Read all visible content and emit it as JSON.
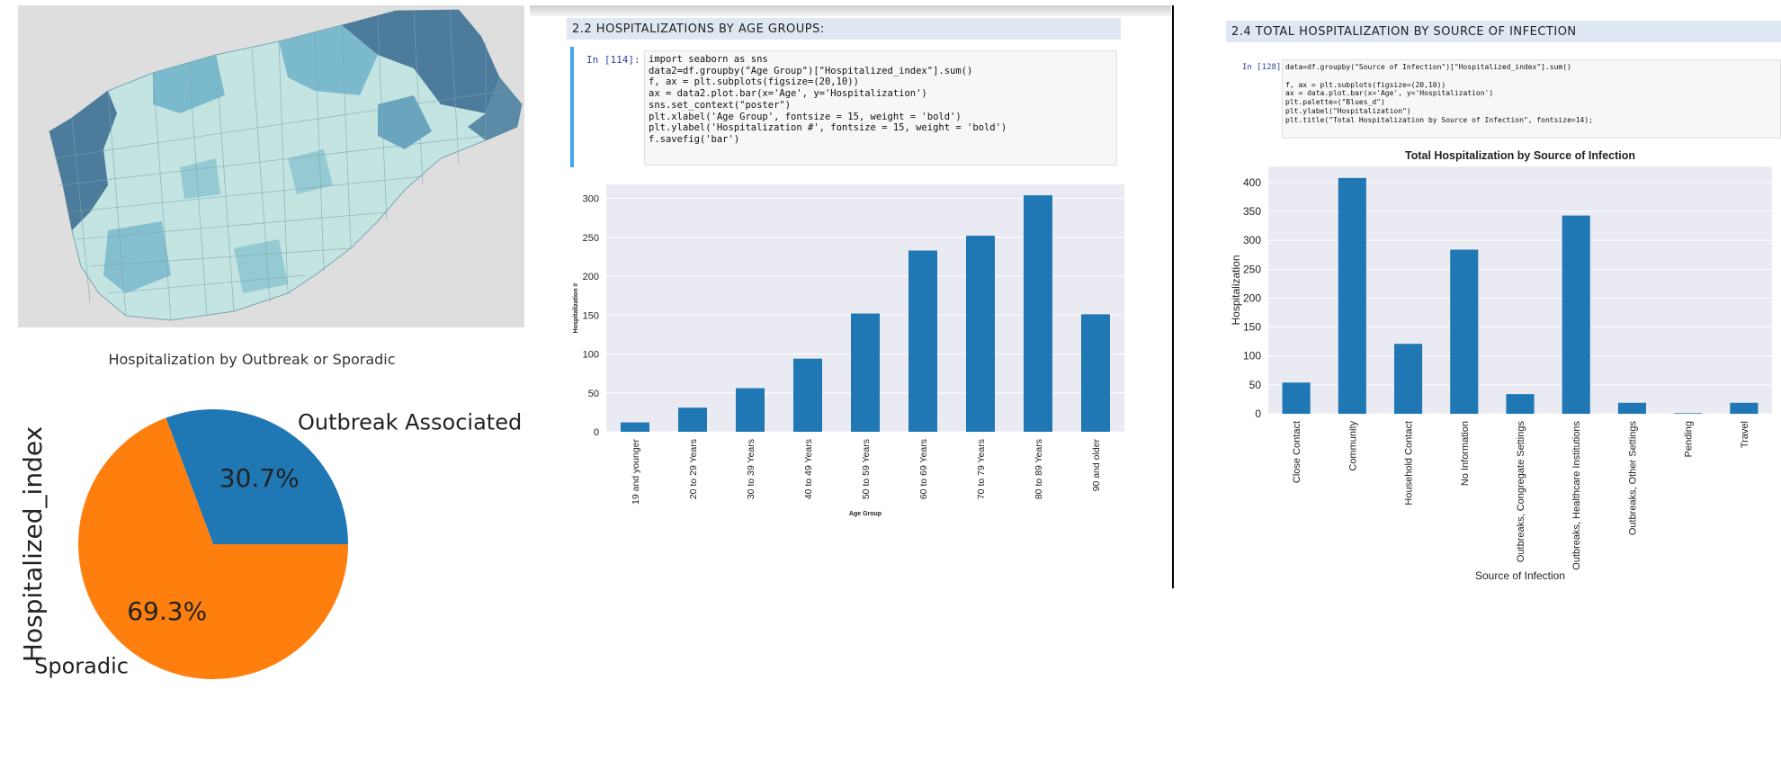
{
  "map": {
    "fill_light": "#c4e4e2",
    "fill_mid": "#6fb3c8",
    "fill_dark": "#3f6f93",
    "background": "#dedede"
  },
  "pie_chart": {
    "title": "Hospitalization by Outbreak or Sporadic",
    "ylabel": "Hospitalized_index"
  },
  "age_section": {
    "header": "2.2 HOSPITALIZATIONS BY AGE GROUPS:",
    "prompt": "In [114]:",
    "code": [
      "import seaborn as sns",
      "data2=df.groupby(\"Age Group\")[\"Hospitalized_index\"].sum()",
      "f, ax = plt.subplots(figsize=(20,10))",
      "ax = data2.plot.bar(x='Age', y='Hospitalization')",
      "sns.set_context(\"poster\")",
      "plt.xlabel('Age Group', fontsize = 15, weight = 'bold')",
      "plt.ylabel('Hospitalization #', fontsize = 15, weight = 'bold')",
      "f.savefig('bar')"
    ]
  },
  "source_section": {
    "header": "2.4 TOTAL HOSPITALIZATION BY SOURCE OF INFECTION",
    "prompt": "In [128]:",
    "code": [
      "data=df.groupby(\"Source of Infection\")[\"Hospitalized_index\"].sum()",
      "",
      "f, ax = plt.subplots(figsize=(20,10))",
      "ax = data.plot.bar(x='Age', y='Hospitalization')",
      "plt.palette=(\"Blues_d\")",
      "plt.ylabel(\"Hospitalization\")",
      "plt.title(\"Total Hospitalization by Source of Infection\", fontsize=14);"
    ]
  },
  "chart_data": [
    {
      "id": "pie",
      "type": "pie",
      "title": "Hospitalization by Outbreak or Sporadic",
      "ylabel": "Hospitalized_index",
      "categories": [
        "Outbreak Associated",
        "Sporadic"
      ],
      "values": [
        30.7,
        69.3
      ],
      "value_labels": [
        "30.7%",
        "69.3%"
      ],
      "colors": [
        "#1f77b4",
        "#ff7f0e"
      ]
    },
    {
      "id": "age",
      "type": "bar",
      "title": "",
      "xlabel": "Age Group",
      "ylabel": "Hospitalization #",
      "categories": [
        "19 and younger",
        "20 to 29 Years",
        "30 to 39 Years",
        "40 to 49 Years",
        "50 to 59 Years",
        "60 to 69 Years",
        "70 to 79 Years",
        "80 to 89 Years",
        "90 and older"
      ],
      "values": [
        12,
        31,
        56,
        94,
        152,
        233,
        252,
        304,
        151
      ],
      "ylim": [
        0,
        318
      ],
      "yticks": [
        0,
        50,
        100,
        150,
        200,
        250,
        300
      ],
      "grid": true,
      "color": "#1f77b4"
    },
    {
      "id": "source",
      "type": "bar",
      "title": "Total Hospitalization by Source of Infection",
      "xlabel": "Source of Infection",
      "ylabel": "Hospitalization",
      "categories": [
        "Close Contact",
        "Community",
        "Household Contact",
        "No Information",
        "Outbreaks, Congregate Settings",
        "Outbreaks, Healthcare Institutions",
        "Outbreaks, Other Settings",
        "Pending",
        "Travel"
      ],
      "values": [
        54,
        408,
        121,
        284,
        34,
        343,
        19,
        1,
        19
      ],
      "ylim": [
        0,
        428
      ],
      "yticks": [
        0,
        50,
        100,
        150,
        200,
        250,
        300,
        350,
        400
      ],
      "grid": true,
      "color": "#1f77b4"
    }
  ]
}
